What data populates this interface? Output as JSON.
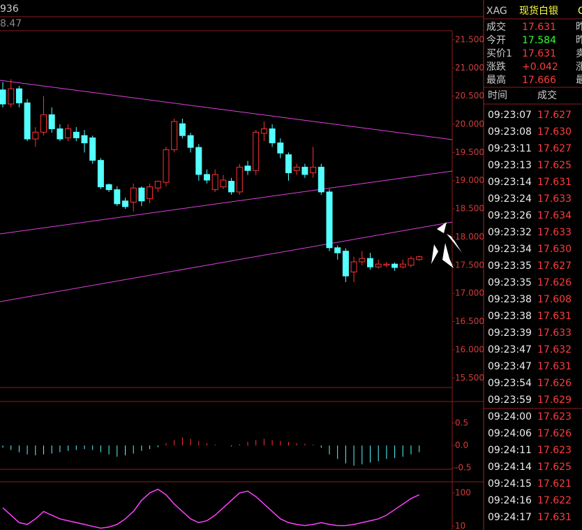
{
  "header": {
    "left_top": "936",
    "left_sub": "8.47"
  },
  "chart_data": [
    {
      "type": "candlestick",
      "up_color": "#ff3232",
      "down_color": "#54ffff",
      "open": [
        20.61,
        20.36,
        20.63,
        20.38,
        19.74,
        19.86,
        20.17,
        19.92,
        19.76,
        19.86,
        19.8,
        19.76,
        19.36,
        18.93,
        18.84,
        18.64,
        18.62,
        18.87,
        18.68,
        18.87,
        18.97,
        19.55,
        20.01,
        19.8,
        19.59,
        19.11,
        18.84,
        18.89,
        18.99,
        18.8,
        19.26,
        19.18,
        19.84,
        19.92,
        19.67,
        19.46,
        19.18,
        19.24,
        19.14,
        19.24,
        18.8,
        17.81,
        17.75,
        17.38,
        17.56,
        17.62,
        17.47,
        17.5,
        17.52,
        17.47,
        17.5,
        17.6
      ],
      "high": [
        20.75,
        20.8,
        20.68,
        20.45,
        19.95,
        20.5,
        20.3,
        20.0,
        20.0,
        19.95,
        19.9,
        19.8,
        19.4,
        18.95,
        18.9,
        18.7,
        18.95,
        18.9,
        18.95,
        19.0,
        19.6,
        20.1,
        20.1,
        19.85,
        19.65,
        19.2,
        19.2,
        19.1,
        19.05,
        19.3,
        19.35,
        19.9,
        20.05,
        20.0,
        19.75,
        19.5,
        19.3,
        19.3,
        19.6,
        19.3,
        18.85,
        17.85,
        17.8,
        17.65,
        17.75,
        17.72,
        17.6,
        17.56,
        17.55,
        17.6,
        17.66,
        17.67
      ],
      "low": [
        20.3,
        20.3,
        20.3,
        19.7,
        19.6,
        19.8,
        19.85,
        19.7,
        19.7,
        19.7,
        19.5,
        19.3,
        18.85,
        18.8,
        18.55,
        18.5,
        18.45,
        18.55,
        18.6,
        18.8,
        18.9,
        19.5,
        19.75,
        19.5,
        19.0,
        18.95,
        18.8,
        18.85,
        18.75,
        18.75,
        19.1,
        19.1,
        19.7,
        19.6,
        19.4,
        19.0,
        19.1,
        19.05,
        19.05,
        18.75,
        17.75,
        17.6,
        17.2,
        17.2,
        17.5,
        17.42,
        17.44,
        17.46,
        17.4,
        17.44,
        17.46,
        17.58
      ],
      "close": [
        20.36,
        20.63,
        20.38,
        19.74,
        19.86,
        20.17,
        19.92,
        19.74,
        19.92,
        19.76,
        19.67,
        19.36,
        18.89,
        18.84,
        18.59,
        18.54,
        18.87,
        18.64,
        18.89,
        18.99,
        19.55,
        20.05,
        19.8,
        19.59,
        19.11,
        19.01,
        19.11,
        19.01,
        18.8,
        19.24,
        19.18,
        19.86,
        19.92,
        19.67,
        19.49,
        19.14,
        19.24,
        19.11,
        19.24,
        18.8,
        17.81,
        17.72,
        17.31,
        17.56,
        17.62,
        17.47,
        17.52,
        17.52,
        17.46,
        17.52,
        17.62,
        17.65
      ],
      "ylim": [
        15.33,
        21.66
      ],
      "yticks": [
        {
          "value": 21.5,
          "label": "21.500"
        },
        {
          "value": 21,
          "label": "21.000"
        },
        {
          "value": 20.5,
          "label": "20.500"
        },
        {
          "value": 20,
          "label": "20.000"
        },
        {
          "value": 19.5,
          "label": "19.500"
        },
        {
          "value": 19,
          "label": "19.000"
        },
        {
          "value": 18.5,
          "label": "18.500"
        },
        {
          "value": 18,
          "label": "18.000"
        },
        {
          "value": 17.5,
          "label": "17.500"
        },
        {
          "value": 17,
          "label": "17.000"
        },
        {
          "value": 16.5,
          "label": "16.500"
        },
        {
          "value": 16,
          "label": "16.000"
        },
        {
          "value": 15.5,
          "label": "15.500"
        }
      ]
    },
    {
      "type": "histogram-bars",
      "up_color": "#ff3232",
      "down_color": "#54ffff",
      "values": [
        -0.05,
        -0.1,
        -0.15,
        -0.2,
        -0.22,
        -0.2,
        -0.18,
        -0.15,
        -0.12,
        -0.1,
        -0.08,
        -0.1,
        -0.15,
        -0.2,
        -0.25,
        -0.22,
        -0.18,
        -0.12,
        -0.08,
        -0.04,
        0.05,
        0.12,
        0.18,
        0.15,
        0.1,
        0.05,
        0.02,
        0.0,
        -0.02,
        0.03,
        0.08,
        0.12,
        0.15,
        0.12,
        0.1,
        0.08,
        0.05,
        0.04,
        0.02,
        -0.05,
        -0.2,
        -0.3,
        -0.4,
        -0.45,
        -0.42,
        -0.38,
        -0.35,
        -0.3,
        -0.28,
        -0.25,
        -0.2,
        -0.15
      ],
      "ylim": [
        -0.53,
        0.98
      ],
      "yticks": [
        0.5,
        {
          "value": 0,
          "label": "0.0"
        },
        {
          "value": -0.5,
          "label": "-0.5"
        }
      ]
    },
    {
      "type": "line",
      "color": "#ff40ff",
      "values": [
        60,
        40,
        20,
        15,
        30,
        50,
        40,
        30,
        25,
        20,
        15,
        10,
        5,
        8,
        15,
        30,
        50,
        80,
        100,
        110,
        95,
        70,
        50,
        30,
        20,
        25,
        40,
        60,
        80,
        100,
        105,
        90,
        70,
        50,
        30,
        20,
        15,
        12,
        15,
        20,
        15,
        12,
        12,
        15,
        20,
        25,
        30,
        40,
        55,
        70,
        85,
        95
      ],
      "ylim": [
        0,
        130
      ],
      "yticks": [
        100,
        10
      ]
    }
  ],
  "quote": {
    "symbol": "XAG",
    "name": "现货白银",
    "name_tail": "C",
    "rows": [
      {
        "label": "成交",
        "value": "17.631",
        "side": "昨"
      },
      {
        "label": "今开",
        "value": "17.584",
        "side": "昨"
      },
      {
        "label": "买价1",
        "value": "17.631",
        "side": "卖"
      },
      {
        "label": "涨跌",
        "value": "+0.042",
        "side": "涨"
      },
      {
        "label": "最高",
        "value": "17.666",
        "side": "最"
      }
    ]
  },
  "ticks": {
    "header": [
      "时间",
      "成交"
    ],
    "rows": [
      [
        "09:23:07",
        "17.627"
      ],
      [
        "09:23:08",
        "17.630"
      ],
      [
        "09:23:11",
        "17.627"
      ],
      [
        "09:23:13",
        "17.625"
      ],
      [
        "09:23:14",
        "17.631"
      ],
      [
        "09:23:24",
        "17.633"
      ],
      [
        "09:23:26",
        "17.634"
      ],
      [
        "09:23:32",
        "17.633"
      ],
      [
        "09:23:34",
        "17.630"
      ],
      [
        "09:23:35",
        "17.627"
      ],
      [
        "09:23:35",
        "17.626"
      ],
      [
        "09:23:38",
        "17.608"
      ],
      [
        "09:23:38",
        "17.631"
      ],
      [
        "09:23:39",
        "17.633"
      ],
      [
        "09:23:47",
        "17.632"
      ],
      [
        "09:23:47",
        "17.631"
      ],
      [
        "09:23:54",
        "17.626"
      ],
      [
        "09:23:59",
        "17.629"
      ],
      [
        "09:24:00",
        "17.623"
      ],
      [
        "09:24:06",
        "17.626"
      ],
      [
        "09:24:11",
        "17.623"
      ],
      [
        "09:24:14",
        "17.625"
      ],
      [
        "09:24:15",
        "17.621"
      ],
      [
        "09:24:16",
        "17.622"
      ],
      [
        "09:24:17",
        "17.631"
      ]
    ]
  }
}
